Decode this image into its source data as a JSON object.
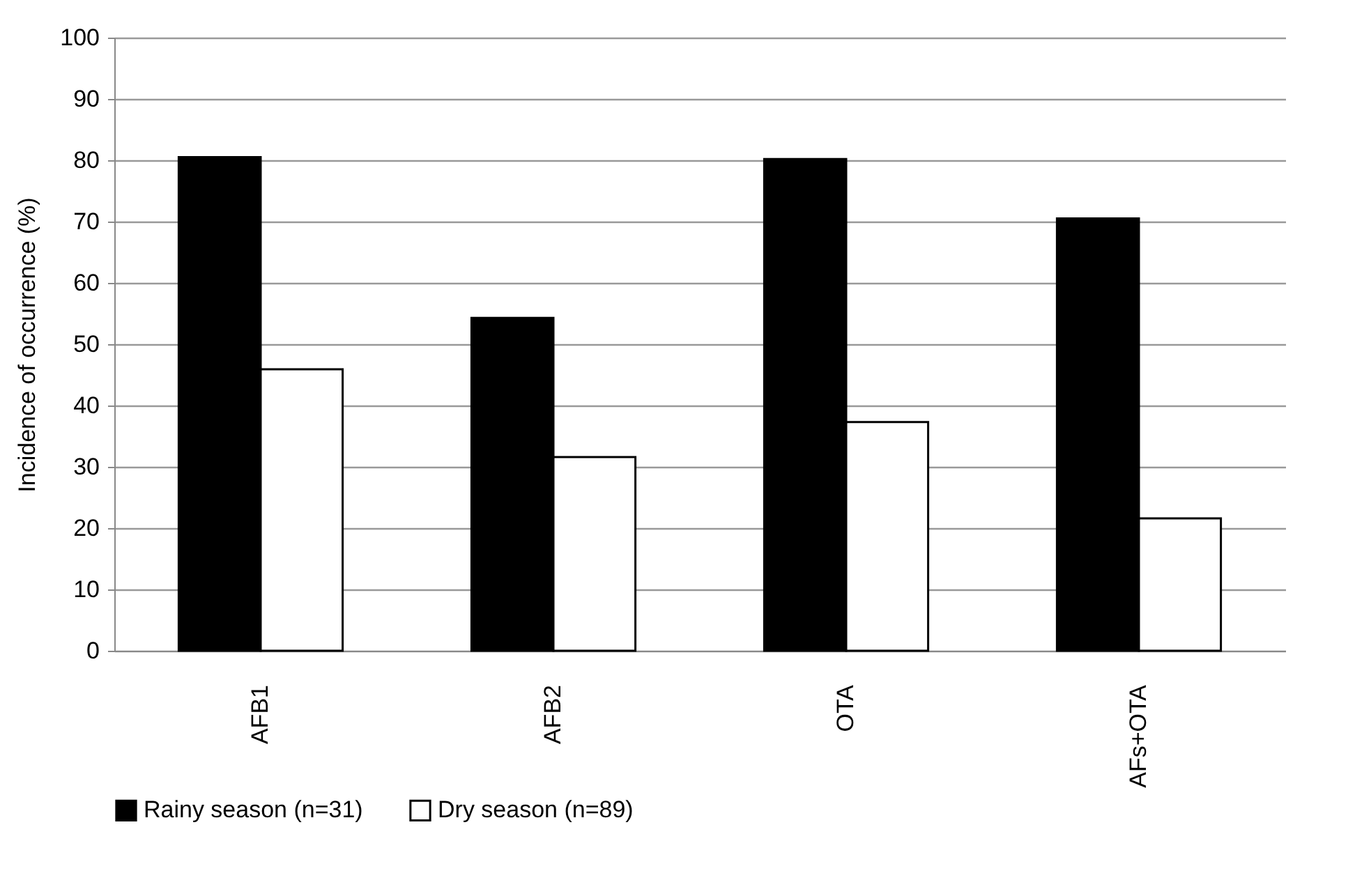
{
  "chart_data": {
    "type": "bar",
    "ylabel": "Incidence of occurrence (%)",
    "categories": [
      "AFB1",
      "AFB2",
      "OTA",
      "AFs+OTA"
    ],
    "series": [
      {
        "name": "Rainy season (n=31)",
        "color": "#000000",
        "values": [
          80.5,
          54.3,
          80.2,
          70.5
        ]
      },
      {
        "name": "Dry season (n=89)",
        "color": "#ffffff",
        "values": [
          45.9,
          31.6,
          37.3,
          21.6
        ]
      }
    ],
    "ylim": [
      0,
      100
    ],
    "yticks": [
      0,
      10,
      20,
      30,
      40,
      50,
      60,
      70,
      80,
      90,
      100
    ],
    "grid": "y",
    "legend": "bottom"
  }
}
